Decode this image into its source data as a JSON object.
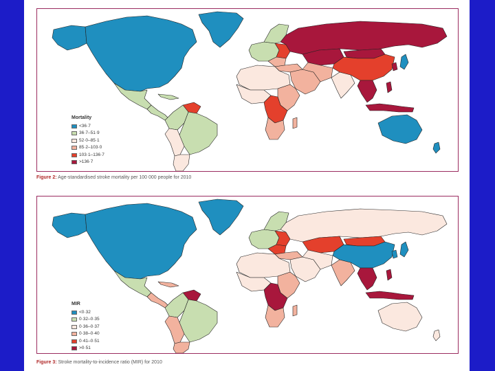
{
  "colors": {
    "background": "#1c1cc8",
    "panel_border": "#9a2a5e",
    "caption_label": "#b02828"
  },
  "maps": [
    {
      "id": "mortality",
      "legend": {
        "title": "Mortality",
        "items": [
          {
            "label": "<36·7",
            "color": "#1f8fbf"
          },
          {
            "label": "36·7–51·9",
            "color": "#c8deb0"
          },
          {
            "label": "52·0–85·1",
            "color": "#fbe8df"
          },
          {
            "label": "85·2–103·0",
            "color": "#f2b29e"
          },
          {
            "label": "103·1–136·7",
            "color": "#e4402c"
          },
          {
            "label": ">136·7",
            "color": "#a8173c"
          }
        ]
      },
      "caption": {
        "label": "Figure 2:",
        "text": " Age-standardised stroke mortality per 100 000 people for 2010"
      }
    },
    {
      "id": "mir",
      "legend": {
        "title": "MIR",
        "items": [
          {
            "label": "<0·32",
            "color": "#1f8fbf"
          },
          {
            "label": "0·32–0·35",
            "color": "#c8deb0"
          },
          {
            "label": "0·36–0·37",
            "color": "#fbe8df"
          },
          {
            "label": "0·38–0·40",
            "color": "#f2b29e"
          },
          {
            "label": "0·41–0·51",
            "color": "#e4402c"
          },
          {
            "label": ">0·51",
            "color": "#a8173c"
          }
        ]
      },
      "caption": {
        "label": "Figure 3:",
        "text": " Stroke mortality-to-incidence ratio (MIR) for 2010"
      }
    }
  ]
}
